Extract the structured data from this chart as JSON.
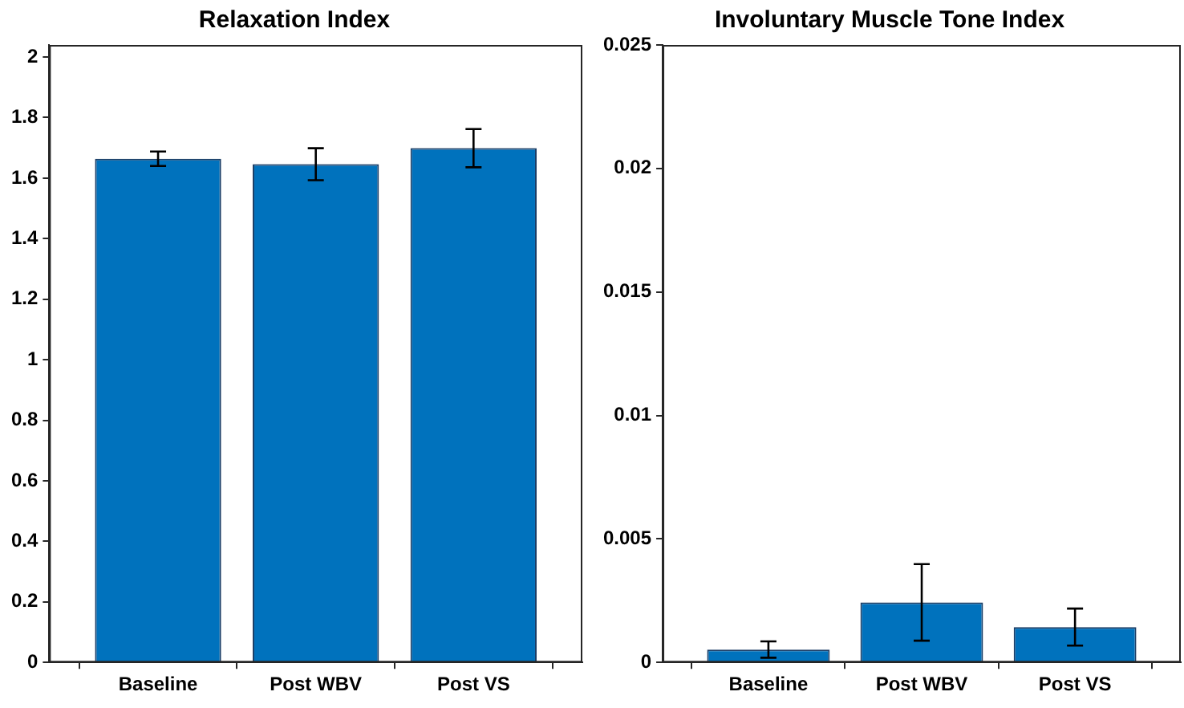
{
  "chart_data": [
    {
      "type": "bar",
      "title": "Relaxation Index",
      "categories": [
        "Baseline",
        "Post WBV",
        "Post VS"
      ],
      "values": [
        1.664,
        1.646,
        1.699
      ],
      "errors": [
        0.024,
        0.053,
        0.063
      ],
      "color": "#0072bd",
      "ylim": [
        0,
        2.04
      ],
      "yticks": [
        0,
        {
          "value": 0.2,
          "label": "0.2"
        },
        {
          "value": 0.4,
          "label": "0.4"
        },
        {
          "value": 0.6,
          "label": "0.6"
        },
        {
          "value": 0.8,
          "label": "0.8"
        },
        1,
        {
          "value": 1.2,
          "label": "1.2"
        },
        {
          "value": 1.4,
          "label": "1.4"
        },
        {
          "value": 1.6,
          "label": "1.6"
        },
        {
          "value": 1.8,
          "label": "1.8"
        },
        2
      ]
    },
    {
      "type": "bar",
      "title": "Involuntary Muscle Tone Index",
      "categories": [
        "Baseline",
        "Post WBV",
        "Post VS"
      ],
      "values": [
        0.00052,
        0.00243,
        0.00143
      ],
      "errors": [
        0.00033,
        0.00155,
        0.00075
      ],
      "color": "#0072bd",
      "ylim": [
        0,
        0.025
      ],
      "yticks": [
        0,
        0.005,
        0.01,
        0.015,
        0.02,
        0.025
      ]
    }
  ]
}
